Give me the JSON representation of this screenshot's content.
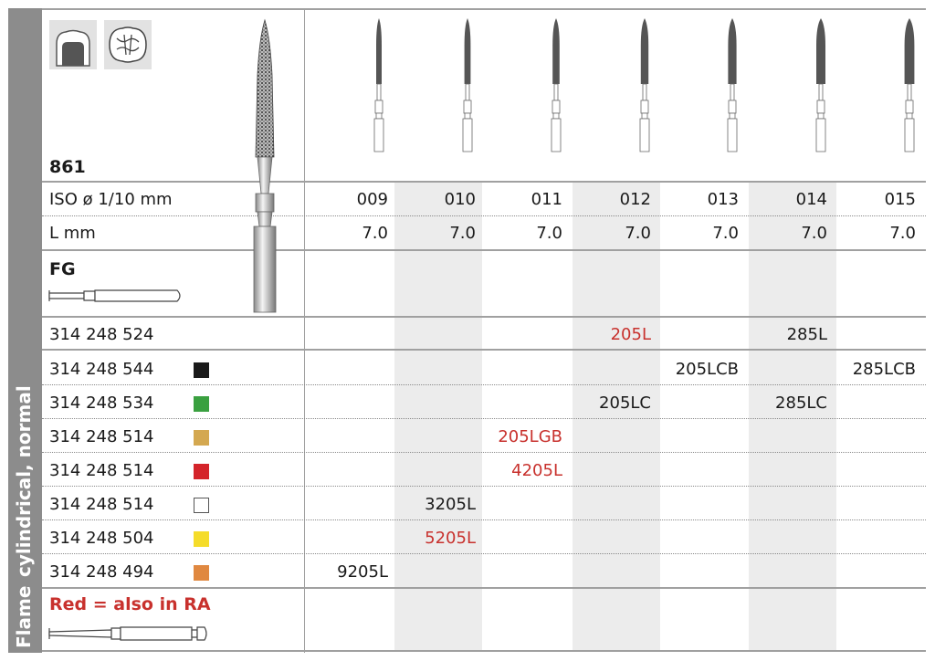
{
  "sidebar": {
    "category": "cylindrical, normal",
    "shape": "Flame"
  },
  "header": {
    "figure_number": "861",
    "iso_label": "ISO ø 1/10 mm",
    "length_label": "L mm",
    "shank_label": "FG",
    "note": "Red = also in RA"
  },
  "icons": [
    "crown-prep-icon",
    "occlusal-prep-icon"
  ],
  "sizes": [
    "009",
    "010",
    "011",
    "012",
    "013",
    "014",
    "015"
  ],
  "lengths": [
    "7.0",
    "7.0",
    "7.0",
    "7.0",
    "7.0",
    "7.0",
    "7.0"
  ],
  "colors": {
    "shade": "#ececec",
    "red_text": "#c8312d",
    "sidebar": "#8c8c8c"
  },
  "rows": [
    {
      "code": "314 248 524",
      "swatch": "",
      "cells": [
        "",
        "",
        "",
        "205L",
        "",
        "285L",
        ""
      ],
      "red": [
        false,
        false,
        false,
        true,
        false,
        false,
        false
      ]
    },
    {
      "code": "314 248 544",
      "swatch": "#1a1a1a",
      "cells": [
        "",
        "",
        "",
        "",
        "205LCB",
        "",
        "285LCB"
      ],
      "red": [
        false,
        false,
        false,
        false,
        false,
        false,
        false
      ]
    },
    {
      "code": "314 248 534",
      "swatch": "#3aa040",
      "cells": [
        "",
        "",
        "",
        "205LC",
        "",
        "285LC",
        ""
      ],
      "red": [
        false,
        false,
        false,
        false,
        false,
        false,
        false
      ]
    },
    {
      "code": "314 248 514",
      "swatch": "#d4a850",
      "cells": [
        "",
        "",
        "205LGB",
        "",
        "",
        "",
        ""
      ],
      "red": [
        false,
        false,
        true,
        false,
        false,
        false,
        false
      ]
    },
    {
      "code": "314 248 514",
      "swatch": "#d4242a",
      "cells": [
        "",
        "",
        "4205L",
        "",
        "",
        "",
        ""
      ],
      "red": [
        false,
        false,
        true,
        false,
        false,
        false,
        false
      ]
    },
    {
      "code": "314 248 514",
      "swatch": "#ffffff",
      "cells": [
        "",
        "3205L",
        "",
        "",
        "",
        "",
        ""
      ],
      "red": [
        false,
        false,
        false,
        false,
        false,
        false,
        false
      ]
    },
    {
      "code": "314 248 504",
      "swatch": "#f5dc2a",
      "cells": [
        "",
        "5205L",
        "",
        "",
        "",
        "",
        ""
      ],
      "red": [
        false,
        true,
        false,
        false,
        false,
        false,
        false
      ]
    },
    {
      "code": "314 248 494",
      "swatch": "#e08840",
      "cells": [
        "9205L",
        "",
        "",
        "",
        "",
        "",
        ""
      ],
      "red": [
        false,
        false,
        false,
        false,
        false,
        false,
        false
      ]
    }
  ]
}
